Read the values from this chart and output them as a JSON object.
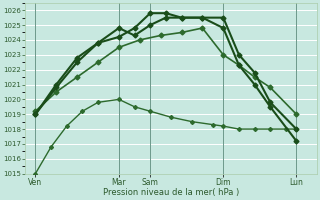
{
  "xlabel": "Pression niveau de la mer( hPa )",
  "bg_color": "#c8e8e0",
  "grid_color": "#ffffff",
  "ylim": [
    1015,
    1026.5
  ],
  "yticks": [
    1015,
    1016,
    1017,
    1018,
    1019,
    1020,
    1021,
    1022,
    1023,
    1024,
    1025,
    1026
  ],
  "xlim": [
    0,
    56
  ],
  "xtick_labels": [
    "Ven",
    "Mar",
    "Sam",
    "Dim",
    "Lun"
  ],
  "xtick_positions": [
    2,
    18,
    24,
    38,
    52
  ],
  "vlines": [
    2,
    18,
    24,
    38,
    52
  ],
  "series": [
    {
      "x": [
        2,
        5,
        8,
        11,
        14,
        18,
        21,
        24,
        28,
        32,
        36,
        38,
        41,
        44,
        47,
        50,
        52
      ],
      "y": [
        1015.0,
        1016.8,
        1018.2,
        1019.2,
        1019.8,
        1020.0,
        1019.5,
        1019.2,
        1018.8,
        1018.5,
        1018.3,
        1018.2,
        1018.0,
        1018.0,
        1018.0,
        1018.0,
        1018.0
      ],
      "color": "#2d6a2d",
      "lw": 1.0,
      "marker": "D",
      "ms": 2.0
    },
    {
      "x": [
        2,
        6,
        10,
        14,
        18,
        22,
        26,
        30,
        34,
        38,
        41,
        44,
        47,
        52
      ],
      "y": [
        1019.2,
        1020.5,
        1021.5,
        1022.5,
        1023.5,
        1024.0,
        1024.3,
        1024.5,
        1024.8,
        1023.0,
        1022.3,
        1021.5,
        1020.8,
        1019.0
      ],
      "color": "#2d6a2d",
      "lw": 1.2,
      "marker": "D",
      "ms": 2.5
    },
    {
      "x": [
        2,
        6,
        10,
        14,
        18,
        21,
        24,
        27,
        30,
        34,
        38,
        41,
        44,
        47,
        52
      ],
      "y": [
        1019.0,
        1020.8,
        1022.5,
        1023.8,
        1024.8,
        1024.3,
        1025.0,
        1025.5,
        1025.5,
        1025.5,
        1024.8,
        1022.3,
        1021.0,
        1019.5,
        1017.2
      ],
      "color": "#1a4d1a",
      "lw": 1.5,
      "marker": "D",
      "ms": 2.5
    },
    {
      "x": [
        2,
        6,
        10,
        14,
        18,
        21,
        24,
        27,
        30,
        34,
        38,
        41,
        44,
        47,
        52
      ],
      "y": [
        1019.0,
        1021.0,
        1022.8,
        1023.8,
        1024.2,
        1024.8,
        1025.8,
        1025.8,
        1025.5,
        1025.5,
        1025.5,
        1023.0,
        1021.8,
        1019.8,
        1018.0
      ],
      "color": "#1a4d1a",
      "lw": 1.5,
      "marker": "D",
      "ms": 2.5
    }
  ]
}
